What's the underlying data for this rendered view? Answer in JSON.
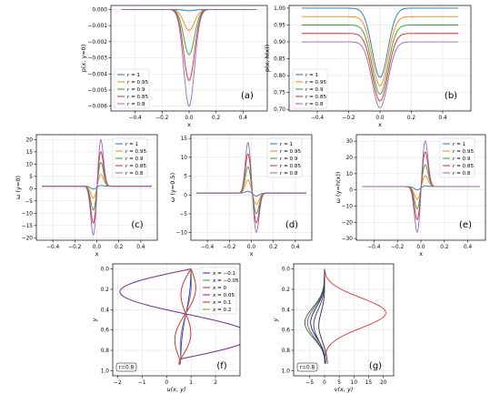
{
  "chart_data": [
    {
      "id": "a",
      "type": "line",
      "panel_label": "(a)",
      "xlabel": "x",
      "ylabel": "p(x, y=0)",
      "xlim": [
        -0.58,
        0.58
      ],
      "ylim": [
        -0.0063,
        0.00025
      ],
      "xticks": [
        -0.4,
        -0.2,
        0.0,
        0.2,
        0.4
      ],
      "xtick_labels": [
        "−0.4",
        "−0.2",
        "0.0",
        "0.2",
        "0.4"
      ],
      "yticks": [
        0.0,
        -0.001,
        -0.002,
        -0.003,
        -0.004,
        -0.005,
        -0.006
      ],
      "ytick_labels": [
        "0.000",
        "−0.001",
        "−0.002",
        "−0.003",
        "−0.004",
        "−0.005",
        "−0.006"
      ],
      "legend": "lower-left",
      "grid": true,
      "series_shape": {
        "kind": "gauss",
        "center": 0.0,
        "width": 0.04,
        "base": 0.0
      },
      "series": [
        {
          "name": "r = 1",
          "base": 0.0,
          "peak": -8e-05
        },
        {
          "name": "r = 0.95",
          "base": 0.0,
          "peak": -0.0013
        },
        {
          "name": "r = 0.9",
          "base": 0.0,
          "peak": -0.0028
        },
        {
          "name": "r = 0.85",
          "base": 0.0,
          "peak": -0.0044
        },
        {
          "name": "r = 0.8",
          "base": 0.0,
          "peak": -0.006
        }
      ]
    },
    {
      "id": "b",
      "type": "line",
      "panel_label": "(b)",
      "xlabel": "x",
      "ylabel": "p(x, h(x))",
      "xlim": [
        -0.58,
        0.58
      ],
      "ylim": [
        0.695,
        1.008
      ],
      "xticks": [
        -0.4,
        -0.2,
        0.0,
        0.2,
        0.4
      ],
      "xtick_labels": [
        "−0.4",
        "−0.2",
        "0.0",
        "0.2",
        "0.4"
      ],
      "yticks": [
        1.0,
        0.95,
        0.9,
        0.85,
        0.8,
        0.75,
        0.7
      ],
      "ytick_labels": [
        "1.00",
        "0.95",
        "0.90",
        "0.85",
        "0.80",
        "0.75",
        "0.70"
      ],
      "legend": "lower-left",
      "grid": true,
      "series_shape": {
        "kind": "gauss",
        "center": 0.0,
        "width": 0.05
      },
      "series": [
        {
          "name": "r = 1",
          "base": 1.0,
          "peak": 0.795
        },
        {
          "name": "r = 0.95",
          "base": 0.975,
          "peak": 0.77
        },
        {
          "name": "r = 0.9",
          "base": 0.95,
          "peak": 0.745
        },
        {
          "name": "r = 0.85",
          "base": 0.925,
          "peak": 0.725
        },
        {
          "name": "r = 0.8",
          "base": 0.9,
          "peak": 0.705
        }
      ]
    },
    {
      "id": "c",
      "type": "line",
      "panel_label": "(c)",
      "xlabel": "x",
      "ylabel": "ω (y=0)",
      "xlim": [
        -0.55,
        0.55
      ],
      "ylim": [
        -21,
        22
      ],
      "xticks": [
        -0.4,
        -0.2,
        0.0,
        0.2,
        0.4
      ],
      "xtick_labels": [
        "−0.4",
        "−0.2",
        "0.0",
        "0.2",
        "0.4"
      ],
      "yticks": [
        20,
        15,
        10,
        5,
        0,
        -5,
        -10,
        -15,
        -20
      ],
      "ytick_labels": [
        "20",
        "15",
        "10",
        "5",
        "0",
        "−5",
        "−10",
        "−15",
        "−20"
      ],
      "legend": "upper-right",
      "grid": true,
      "series_shape": {
        "kind": "dipole",
        "neg_center": -0.03,
        "pos_center": 0.035,
        "width": 0.025
      },
      "series": [
        {
          "name": "r = 1",
          "base": 1.0,
          "neg": -0.2,
          "pos": 1.3
        },
        {
          "name": "r = 0.95",
          "base": 1.0,
          "neg": -4.0,
          "pos": 6.0
        },
        {
          "name": "r = 0.9",
          "base": 1.0,
          "neg": -9.0,
          "pos": 11.0
        },
        {
          "name": "r = 0.85",
          "base": 1.0,
          "neg": -14.5,
          "pos": 15.5
        },
        {
          "name": "r = 0.8",
          "base": 1.0,
          "neg": -19.5,
          "pos": 20.5
        }
      ]
    },
    {
      "id": "d",
      "type": "line",
      "panel_label": "(d)",
      "xlabel": "x",
      "ylabel": "ω (y=0.5)",
      "xlim": [
        -0.55,
        0.55
      ],
      "ylim": [
        -12,
        16
      ],
      "xticks": [
        -0.4,
        -0.2,
        0.0,
        0.2,
        0.4
      ],
      "xtick_labels": [
        "−0.4",
        "−0.2",
        "0.0",
        "0.2",
        "0.4"
      ],
      "yticks": [
        15,
        10,
        5,
        0,
        -5,
        -10
      ],
      "ytick_labels": [
        "15",
        "10",
        "5",
        "0",
        "−5",
        "−10"
      ],
      "legend": "upper-right",
      "grid": true,
      "series_shape": {
        "kind": "dipole",
        "neg_center": 0.045,
        "pos_center": -0.03,
        "width": 0.025
      },
      "series": [
        {
          "name": "r = 1",
          "base": 0.5,
          "neg": -0.3,
          "pos": 1.0
        },
        {
          "name": "r = 0.95",
          "base": 0.5,
          "neg": -2.5,
          "pos": 4.0
        },
        {
          "name": "r = 0.9",
          "base": 0.5,
          "neg": -5.0,
          "pos": 7.5
        },
        {
          "name": "r = 0.85",
          "base": 0.5,
          "neg": -7.5,
          "pos": 11.0
        },
        {
          "name": "r = 0.8",
          "base": 0.5,
          "neg": -10.0,
          "pos": 14.0
        }
      ]
    },
    {
      "id": "e",
      "type": "line",
      "panel_label": "(e)",
      "xlabel": "x",
      "ylabel": "ω (y=h(x))",
      "xlim": [
        -0.55,
        0.55
      ],
      "ylim": [
        -31,
        34
      ],
      "xticks": [
        -0.4,
        -0.2,
        0.0,
        0.2,
        0.4
      ],
      "xtick_labels": [
        "−0.4",
        "−0.2",
        "0.0",
        "0.2",
        "0.4"
      ],
      "yticks": [
        30,
        20,
        10,
        0,
        -10,
        -20,
        -30
      ],
      "ytick_labels": [
        "30",
        "20",
        "10",
        "0",
        "−10",
        "−20",
        "−30"
      ],
      "legend": "upper-right",
      "grid": true,
      "series_shape": {
        "kind": "dipole",
        "neg_center": -0.03,
        "pos_center": 0.035,
        "width": 0.025
      },
      "series": [
        {
          "name": "r = 1",
          "base": 2.0,
          "neg": 0.0,
          "pos": 2.5
        },
        {
          "name": "r = 0.95",
          "base": 2.0,
          "neg": -6.0,
          "pos": 9.0
        },
        {
          "name": "r = 0.9",
          "base": 2.0,
          "neg": -12.0,
          "pos": 16.0
        },
        {
          "name": "r = 0.85",
          "base": 2.0,
          "neg": -19.0,
          "pos": 24.0
        },
        {
          "name": "r = 0.8",
          "base": 2.0,
          "neg": -27.0,
          "pos": 31.0
        }
      ]
    },
    {
      "id": "f",
      "type": "line",
      "panel_label": "(f)",
      "xlabel": "u(x, y)",
      "ylabel": "y",
      "xlim": [
        -2.2,
        3.0
      ],
      "ylim": [
        -0.05,
        1.05
      ],
      "y_inverted": true,
      "xticks": [
        -2,
        -1,
        0,
        1,
        2
      ],
      "xtick_labels": [
        "−2",
        "−1",
        "0",
        "1",
        "2"
      ],
      "yticks": [
        0.0,
        0.2,
        0.4,
        0.6,
        0.8,
        1.0
      ],
      "ytick_labels": [
        "0.0",
        "0.2",
        "0.4",
        "0.6",
        "0.8",
        "1.0"
      ],
      "inset_label": "r=0.8",
      "legend": "upper-right",
      "grid": true,
      "series_shape": {
        "kind": "profile",
        "y_range": [
          0.0,
          1.0
        ],
        "node": 0.47
      },
      "series": [
        {
          "name": "x = −0.1",
          "top": 1.0,
          "bottom": 0.55,
          "a1": 0.05,
          "a2": 0.05
        },
        {
          "name": "x = −0.05",
          "top": 1.0,
          "bottom": 0.55,
          "a1": -2.8,
          "a2": 2.5
        },
        {
          "name": "x = 0",
          "top": 1.0,
          "bottom": 0.5,
          "a1": 0.3,
          "a2": -0.3
        },
        {
          "name": "x = 0.05",
          "top": 1.0,
          "bottom": 0.55,
          "a1": -2.8,
          "a2": 2.5
        },
        {
          "name": "x = 0.1",
          "top": 1.0,
          "bottom": 0.55,
          "a1": -0.3,
          "a2": 0.4
        },
        {
          "name": "x = 0.2",
          "top": 1.0,
          "bottom": 0.55,
          "a1": 0.1,
          "a2": 0.1
        }
      ]
    },
    {
      "id": "g",
      "type": "line",
      "panel_label": "(g)",
      "xlabel": "v(x, y)",
      "ylabel": "y",
      "xlim": [
        -10.5,
        23.5
      ],
      "ylim": [
        -0.05,
        1.05
      ],
      "y_inverted": true,
      "xticks": [
        -5,
        0,
        5,
        10,
        15,
        20
      ],
      "xtick_labels": [
        "−5",
        "0",
        "5",
        "10",
        "15",
        "20"
      ],
      "yticks": [
        0.0,
        0.2,
        0.4,
        0.6,
        0.8,
        1.0
      ],
      "ytick_labels": [
        "0.0",
        "0.2",
        "0.4",
        "0.6",
        "0.8",
        "1.0"
      ],
      "inset_label": "r=0.8",
      "grid": true,
      "series_shape": {
        "kind": "bump",
        "y_range": [
          0.0,
          0.93
        ]
      },
      "series": [
        {
          "amp": -5.0,
          "center": 0.55,
          "width": 0.17,
          "end": 0.8
        },
        {
          "amp": -7.0,
          "center": 0.55,
          "width": 0.17,
          "end": 0.6
        },
        {
          "amp": 21.0,
          "center": 0.42,
          "width": 0.17,
          "end": 0.0
        },
        {
          "amp": -6.0,
          "center": 0.55,
          "width": 0.17,
          "end": 0.3
        },
        {
          "amp": -4.0,
          "center": 0.58,
          "width": 0.17,
          "end": 0.6
        },
        {
          "amp": -2.5,
          "center": 0.6,
          "width": 0.16,
          "end": 2.0
        }
      ]
    }
  ],
  "colors": {
    "r_series": [
      "#1f77b4",
      "#ff7f0e",
      "#2ca02c",
      "#d62728",
      "#9467bd"
    ],
    "x_series": [
      "#1f1fff",
      "#20a020",
      "#d42020",
      "#8a1fb0",
      "#cc2020",
      "#808040"
    ],
    "v_series": [
      "#1f1f3f",
      "#2f5f2f",
      "#e03030",
      "#606060",
      "#3030a0",
      "#303030"
    ],
    "grid": "#e3e3e3",
    "axis": "#000000"
  }
}
